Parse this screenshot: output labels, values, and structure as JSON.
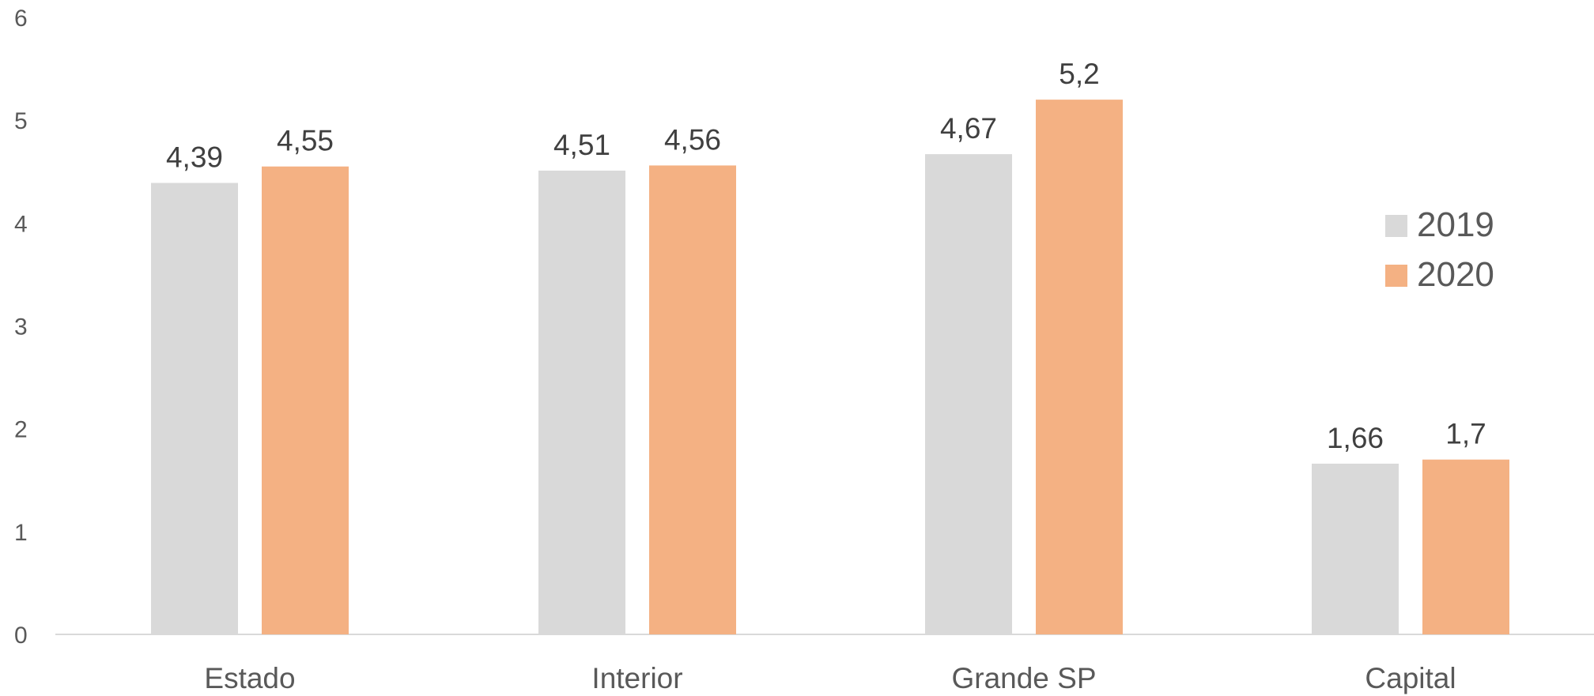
{
  "chart_data": {
    "type": "bar",
    "title": "",
    "xlabel": "",
    "ylabel": "",
    "categories": [
      "Estado",
      "Interior",
      "Grande SP",
      "Capital"
    ],
    "series": [
      {
        "name": "2019",
        "color": "#d9d9d9",
        "values": [
          4.39,
          4.51,
          4.67,
          1.66
        ],
        "labels": [
          "4,39",
          "4,51",
          "4,67",
          "1,66"
        ]
      },
      {
        "name": "2020",
        "color": "#f4b183",
        "values": [
          4.55,
          4.56,
          5.2,
          1.7
        ],
        "labels": [
          "4,55",
          "4,56",
          "5,2",
          "1,7"
        ]
      }
    ],
    "ylim": [
      0,
      6
    ],
    "yticks": [
      0,
      1,
      2,
      3,
      4,
      5,
      6
    ],
    "grid": false,
    "legend_position": "right"
  }
}
